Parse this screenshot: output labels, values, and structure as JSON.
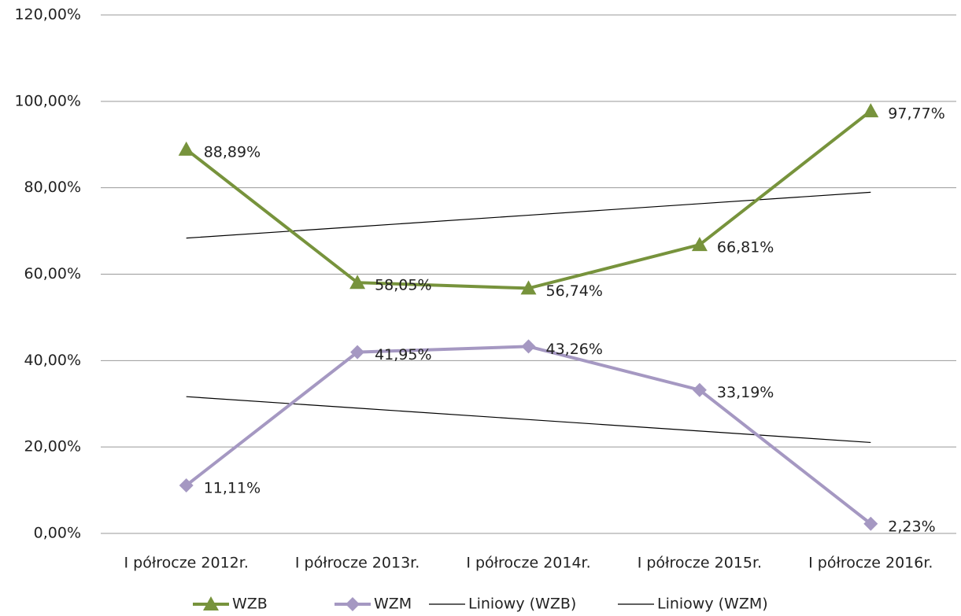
{
  "chart_data": {
    "type": "line",
    "categories": [
      "I półrocze 2012r.",
      "I półrocze 2013r.",
      "I półrocze 2014r.",
      "I półrocze 2015r.",
      "I półrocze 2016r."
    ],
    "series": [
      {
        "name": "WZB",
        "color": "#77933c",
        "marker": "triangle",
        "values": [
          88.89,
          58.05,
          56.74,
          66.81,
          97.77
        ],
        "value_labels": [
          "88,89%",
          "58,05%",
          "56,74%",
          "66,81%",
          "97,77%"
        ]
      },
      {
        "name": "WZM",
        "color": "#a598c2",
        "marker": "diamond",
        "values": [
          11.11,
          41.95,
          43.26,
          33.19,
          2.23
        ],
        "value_labels": [
          "11,11%",
          "41,95%",
          "43,26%",
          "33,19%",
          "2,23%"
        ]
      },
      {
        "name": "Liniowy (WZB)",
        "color": "#000000",
        "values": [
          68.35,
          71.0,
          73.65,
          76.31,
          78.96
        ]
      },
      {
        "name": "Liniowy (WZM)",
        "color": "#000000",
        "values": [
          31.65,
          29.0,
          26.35,
          23.69,
          21.04
        ]
      }
    ],
    "ylim": [
      0,
      120
    ],
    "yticks": [
      {
        "value": 0,
        "label": "0,00%"
      },
      {
        "value": 20,
        "label": "20,00%"
      },
      {
        "value": 40,
        "label": "40,00%"
      },
      {
        "value": 60,
        "label": "60,00%"
      },
      {
        "value": 80,
        "label": "80,00%"
      },
      {
        "value": 100,
        "label": "100,00%"
      },
      {
        "value": 120,
        "label": "120,00%"
      }
    ],
    "grid": true,
    "legend": "bottom"
  }
}
